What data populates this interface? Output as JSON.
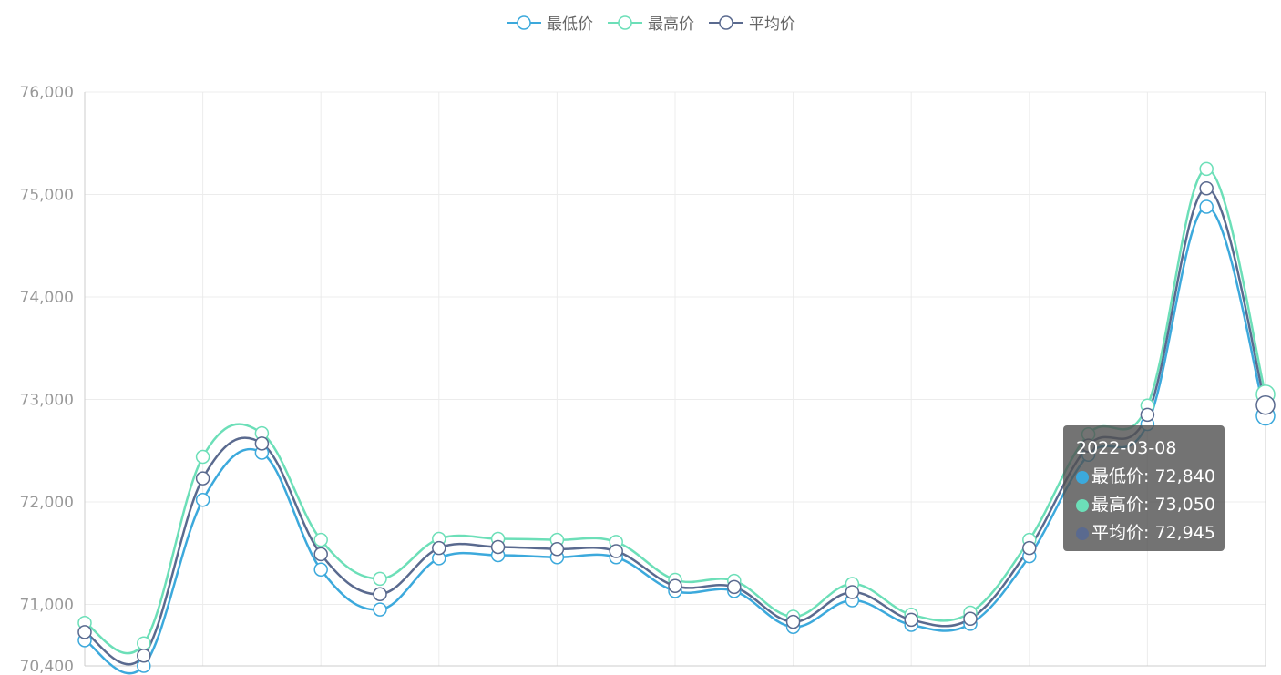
{
  "legend": [
    {
      "name": "最低价",
      "color": "#3ca9dc"
    },
    {
      "name": "最高价",
      "color": "#6cdfb8"
    },
    {
      "name": "平均价",
      "color": "#5a6a8f"
    }
  ],
  "tooltip": {
    "date": "2022-03-08",
    "rows": [
      {
        "label": "最低价: 72,840",
        "color": "#3ca9dc"
      },
      {
        "label": "最高价: 73,050",
        "color": "#6cdfb8"
      },
      {
        "label": "平均价: 72,945",
        "color": "#5a6a8f"
      }
    ]
  },
  "chart_data": {
    "type": "line",
    "smooth": true,
    "ylim": [
      70400,
      76000
    ],
    "yticks": [
      {
        "value": 70400,
        "label": "70,400"
      },
      {
        "value": 71000,
        "label": "71,000"
      },
      {
        "value": 72000,
        "label": "72,000"
      },
      {
        "value": 73000,
        "label": "73,000"
      },
      {
        "value": 74000,
        "label": "74,000"
      },
      {
        "value": 75000,
        "label": "75,000"
      },
      {
        "value": 76000,
        "label": "76,000"
      }
    ],
    "x_count": 21,
    "last_x": "2022-03-08",
    "grid": true,
    "legend_position": "top-center",
    "series": [
      {
        "name": "最低价",
        "color": "#3ca9dc",
        "values": [
          70650,
          70400,
          72020,
          72480,
          71340,
          70950,
          71450,
          71480,
          71460,
          71460,
          71130,
          71130,
          70780,
          71040,
          70800,
          70810,
          71470,
          72460,
          72760,
          74880,
          72840
        ]
      },
      {
        "name": "最高价",
        "color": "#6cdfb8",
        "values": [
          70820,
          70620,
          72440,
          72670,
          71630,
          71250,
          71640,
          71640,
          71630,
          71610,
          71240,
          71230,
          70880,
          71200,
          70900,
          70920,
          71630,
          72660,
          72940,
          75250,
          73050
        ]
      },
      {
        "name": "平均价",
        "color": "#5a6a8f",
        "values": [
          70730,
          70500,
          72230,
          72570,
          71490,
          71100,
          71550,
          71560,
          71540,
          71520,
          71180,
          71170,
          70830,
          71120,
          70850,
          70860,
          71550,
          72550,
          72850,
          75060,
          72945
        ]
      }
    ]
  }
}
